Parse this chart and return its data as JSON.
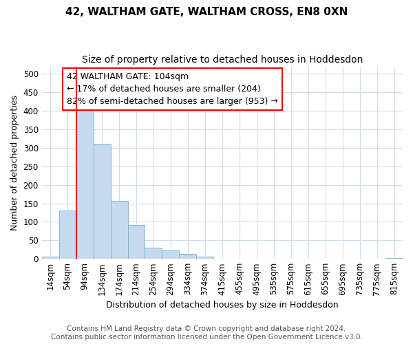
{
  "title": "42, WALTHAM GATE, WALTHAM CROSS, EN8 0XN",
  "subtitle": "Size of property relative to detached houses in Hoddesdon",
  "xlabel": "Distribution of detached houses by size in Hoddesdon",
  "ylabel": "Number of detached properties",
  "categories": [
    "14sqm",
    "54sqm",
    "94sqm",
    "134sqm",
    "174sqm",
    "214sqm",
    "254sqm",
    "294sqm",
    "334sqm",
    "374sqm",
    "415sqm",
    "455sqm",
    "495sqm",
    "535sqm",
    "575sqm",
    "615sqm",
    "655sqm",
    "695sqm",
    "735sqm",
    "775sqm",
    "815sqm"
  ],
  "values": [
    5,
    130,
    405,
    310,
    157,
    92,
    30,
    22,
    14,
    5,
    0,
    0,
    0,
    0,
    0,
    0,
    0,
    0,
    0,
    0,
    2
  ],
  "bar_color": "#c5d9ef",
  "bar_edge_color": "#7aadd4",
  "red_line_x": 1.5,
  "annotation_text": "42 WALTHAM GATE: 104sqm\n← 17% of detached houses are smaller (204)\n82% of semi-detached houses are larger (953) →",
  "annotation_box_color": "white",
  "annotation_box_edge": "red",
  "ylim": [
    0,
    520
  ],
  "yticks": [
    0,
    50,
    100,
    150,
    200,
    250,
    300,
    350,
    400,
    450,
    500
  ],
  "footer1": "Contains HM Land Registry data © Crown copyright and database right 2024.",
  "footer2": "Contains public sector information licensed under the Open Government Licence v3.0.",
  "bg_color": "#ffffff",
  "plot_bg_color": "#ffffff",
  "grid_color": "#d0dce8",
  "title_fontsize": 11,
  "subtitle_fontsize": 10,
  "axis_label_fontsize": 9,
  "tick_fontsize": 8.5,
  "annotation_fontsize": 9,
  "footer_fontsize": 7.5
}
